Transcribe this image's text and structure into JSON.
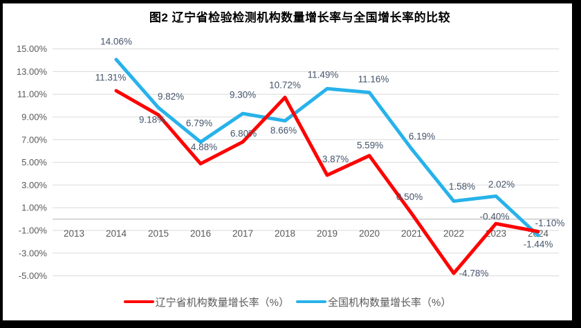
{
  "chart_data": {
    "type": "line",
    "title": "图2 辽宁省检验检测机构数量增长率与全国增长率的比较",
    "categories": [
      "2013",
      "2014",
      "2015",
      "2016",
      "2017",
      "2018",
      "2019",
      "2020",
      "2021",
      "2022",
      "2023",
      "2024"
    ],
    "series": [
      {
        "key": "liaoning",
        "name": "辽宁省机构数量增长率（%）",
        "color": "#FF0000",
        "values": [
          null,
          11.31,
          9.18,
          4.88,
          6.8,
          10.72,
          3.87,
          5.59,
          0.5,
          -4.78,
          -0.4,
          -1.1
        ],
        "point_labels": [
          "",
          "11.31%",
          "9.18%",
          "4.88%",
          "6.80%",
          "10.72%",
          "3.87%",
          "5.59%",
          "0.50%",
          "-4.78%",
          "-0.40%",
          "-1.10%"
        ],
        "label_offsets": [
          [
            0,
            0
          ],
          [
            -8,
            -19
          ],
          [
            -9,
            7
          ],
          [
            5,
            -24
          ],
          [
            1,
            -12
          ],
          [
            0,
            -18
          ],
          [
            12,
            -23
          ],
          [
            1,
            -15
          ],
          [
            -3,
            -24
          ],
          [
            29,
            0
          ],
          [
            -2,
            -10
          ],
          [
            17,
            -12
          ]
        ]
      },
      {
        "key": "national",
        "name": "全国机构数量增长率（%）",
        "color": "#27B2EA",
        "values": [
          null,
          14.06,
          9.82,
          6.79,
          9.3,
          8.66,
          11.49,
          11.16,
          6.19,
          1.58,
          2.02,
          -1.44
        ],
        "point_labels": [
          "",
          "14.06%",
          "9.82%",
          "6.79%",
          "9.30%",
          "8.66%",
          "11.49%",
          "11.16%",
          "6.19%",
          "1.58%",
          "2.02%",
          "-1.44%"
        ],
        "label_offsets": [
          [
            0,
            0
          ],
          [
            0,
            -26
          ],
          [
            18,
            -16
          ],
          [
            -2,
            -27
          ],
          [
            0,
            -27
          ],
          [
            -2,
            14
          ],
          [
            -6,
            -20
          ],
          [
            6,
            -19
          ],
          [
            15,
            -18
          ],
          [
            12,
            -21
          ],
          [
            8,
            -17
          ],
          [
            0,
            13
          ]
        ]
      }
    ],
    "y_axis": {
      "min": -5,
      "max": 15,
      "step": 2,
      "tick_labels": [
        "15.00%",
        "13.00%",
        "11.00%",
        "9.00%",
        "7.00%",
        "5.00%",
        "3.00%",
        "1.00%",
        "-1.00%",
        "-3.00%",
        "-5.00%"
      ]
    },
    "x_axis": {
      "tick_labels_visible": true
    },
    "grid": true,
    "legend_position": "bottom",
    "colors": {
      "gridline": "#D9D9D9",
      "zero_line": "#BFBFBF",
      "tick_text": "#595959",
      "data_label": "#44546A",
      "title_text": "#000000",
      "legend_text": "#595959",
      "canvas": "#FFFFFF",
      "frame": "#000000"
    }
  }
}
